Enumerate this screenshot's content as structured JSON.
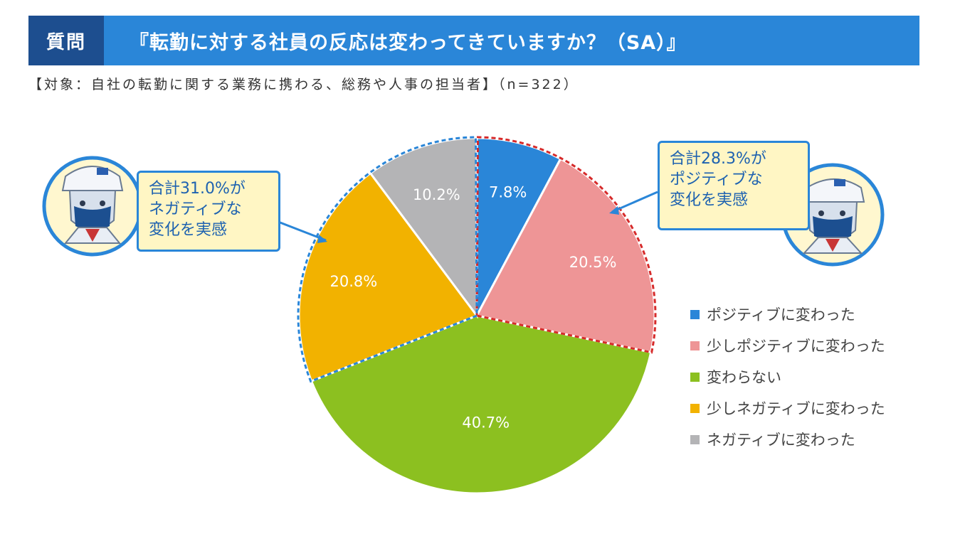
{
  "header": {
    "tag": "質問",
    "question": "『転勤に対する社員の反応は変わってきていますか？（SA）』"
  },
  "subtitle": "【対象：自社の転勤に関する業務に携わる、総務や人事の担当者】（n=322）",
  "callouts": {
    "negative_total": [
      "合計31.0%が",
      "ネガティブな",
      "変化を実感"
    ],
    "positive_total": [
      "合計28.3%が",
      "ポジティブな",
      "変化を実感"
    ]
  },
  "colors": {
    "header_blue": "#2a86d8",
    "header_tag": "#1d4e8f",
    "positive_dashed": "#d62a2a",
    "negative_dashed": "#2a86d8"
  },
  "icons": [
    "mascot-left-icon",
    "mascot-right-icon"
  ],
  "chart_data": {
    "type": "pie",
    "categories": [
      "ポジティブに変わった",
      "少しポジティブに変わった",
      "変わらない",
      "少しネガティブに変わった",
      "ネガティブに変わった"
    ],
    "values": [
      7.8,
      20.5,
      40.7,
      20.8,
      10.2
    ],
    "labels": [
      "7.8%",
      "20.5%",
      "40.7%",
      "20.8%",
      "10.2%"
    ],
    "colors": [
      "#2a86d8",
      "#ee9596",
      "#8cc020",
      "#f2b200",
      "#b4b4b6"
    ],
    "legend_position": "right",
    "start": "top, clockwise"
  }
}
